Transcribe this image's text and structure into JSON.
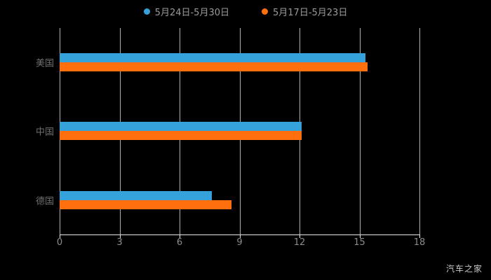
{
  "chart_data": {
    "type": "bar",
    "orientation": "horizontal",
    "title": "",
    "categories": [
      "美国",
      "中国",
      "德国"
    ],
    "series": [
      {
        "name": "5月24日-5月30日",
        "color": "#36A2DB",
        "values": [
          15.3,
          12.1,
          7.6
        ]
      },
      {
        "name": "5月17日-5月23日",
        "color": "#FF6F0E",
        "values": [
          15.4,
          12.1,
          8.6
        ]
      }
    ],
    "xlabel": "",
    "ylabel": "",
    "xlim": [
      0,
      18
    ],
    "x_ticks": [
      "0",
      "3",
      "6",
      "9",
      "12",
      "15",
      "18"
    ],
    "grid": true,
    "legend_position": "top"
  },
  "watermark": "汽车之家",
  "colors": {
    "background": "#000000",
    "gridline": "#cfcfcf",
    "axis_line": "#e9e9e9",
    "category_label": "#6e6e6e",
    "tick_label": "#8c8c8c",
    "legend_label": "#9a9a9a",
    "series_blue": "#36A2DB",
    "series_orange": "#FF6F0E"
  }
}
